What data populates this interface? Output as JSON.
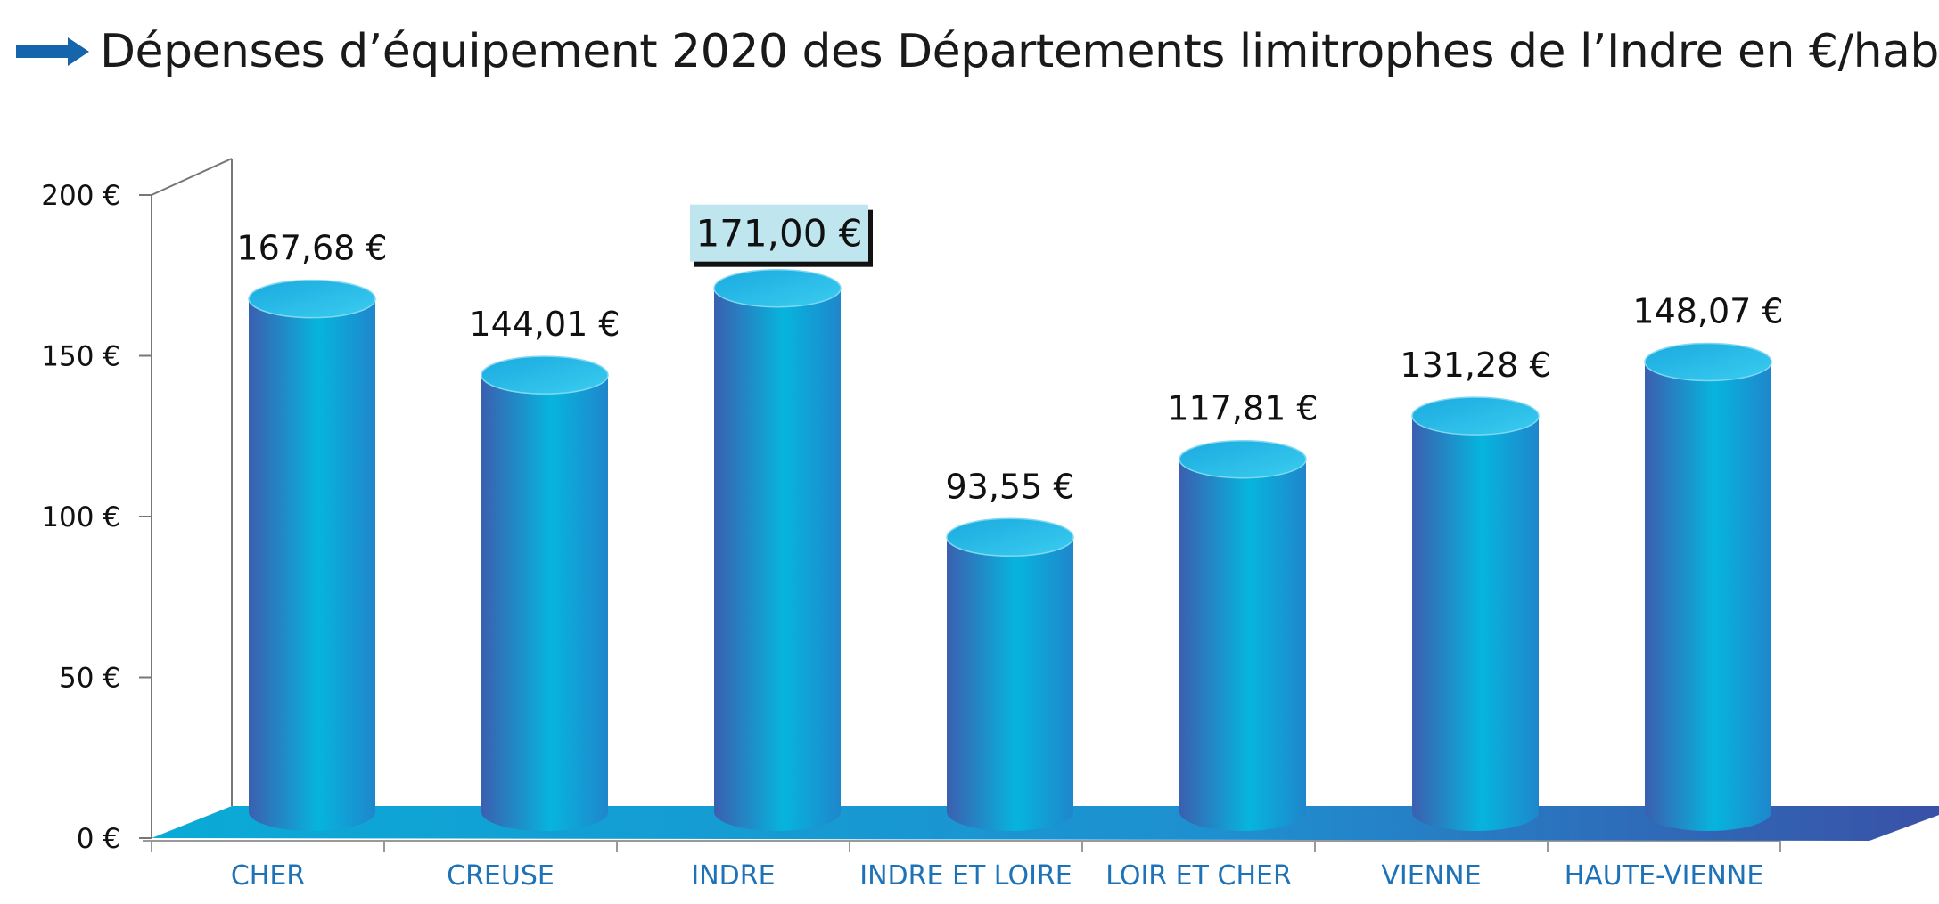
{
  "title": "Dépenses d’équipement 2020 des Départements limitrophes de l’Indre en €/hab",
  "colors": {
    "arrow": "#1565ad",
    "cylinder_dark": "#3b5fb0",
    "cylinder_light": "#06b5dd",
    "cylinder_top": "#2fc3ea",
    "floor_light": "#0aaad6",
    "floor_dark": "#3a4fa6",
    "highlight_box": "#bfe6ef",
    "xtick": "#1e73b8"
  },
  "icons": {
    "title_arrow": "arrow-right-icon"
  },
  "chart_data": {
    "type": "bar",
    "style": "3d-cylinder",
    "title": "Dépenses d’équipement 2020 des Départements limitrophes de l’Indre en €/hab",
    "categories": [
      "CHER",
      "CREUSE",
      "INDRE",
      "INDRE ET LOIRE",
      "LOIR ET CHER",
      "VIENNE",
      "HAUTE-VIENNE"
    ],
    "values": [
      167.68,
      144.01,
      171.0,
      93.55,
      117.81,
      131.28,
      148.07
    ],
    "data_labels": [
      "167,68 €",
      "144,01 €",
      "171,00 €",
      "93,55 €",
      "117,81 €",
      "131,28 €",
      "148,07 €"
    ],
    "highlighted_category": "INDRE",
    "ylim": [
      0,
      200
    ],
    "yticks": [
      0,
      50,
      100,
      150,
      200
    ],
    "ytick_labels": [
      "0 €",
      "50 €",
      "100 €",
      "150 €",
      "200 €"
    ],
    "grid": false,
    "legend": "none"
  }
}
